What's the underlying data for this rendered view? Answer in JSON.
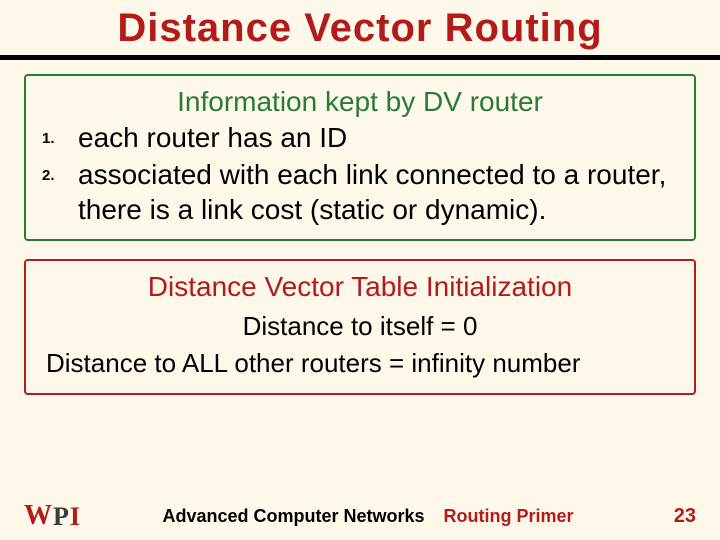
{
  "title": "Distance Vector Routing",
  "colors": {
    "background": "#fdf8e9",
    "accent_red": "#b31b1b",
    "accent_green": "#2a7a37",
    "underline": "#000000",
    "text": "#000000"
  },
  "box1": {
    "heading": "Information kept by DV router",
    "items": [
      {
        "num": "1.",
        "text": "each router has an ID"
      },
      {
        "num": "2.",
        "text": "associated with each link connected to a router, there is a link cost (static or dynamic)."
      }
    ]
  },
  "box2": {
    "heading": "Distance Vector Table Initialization",
    "line1": "Distance to itself  =  0",
    "line2": "Distance to ALL other routers  =  infinity number"
  },
  "footer": {
    "logo_w": "W",
    "logo_p": "P",
    "logo_i": "I",
    "course": "Advanced Computer Networks",
    "topic": "Routing Primer",
    "page": "23"
  }
}
